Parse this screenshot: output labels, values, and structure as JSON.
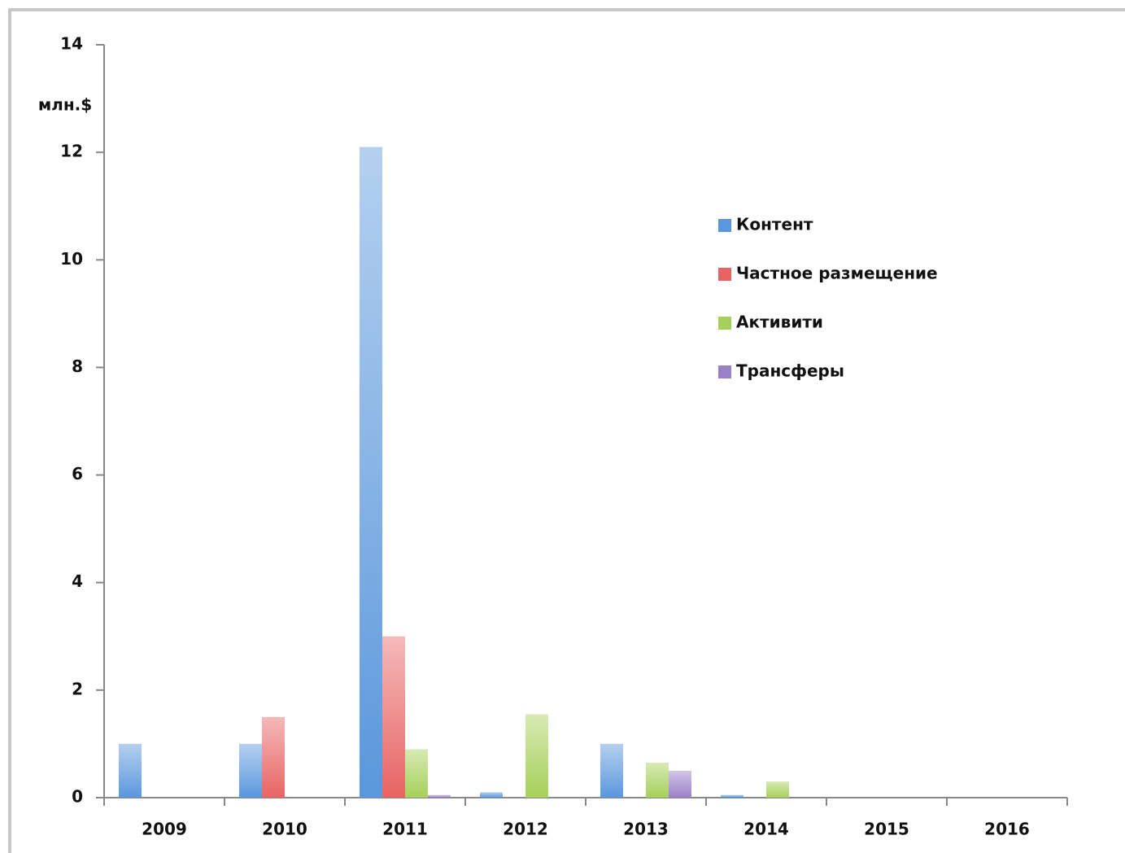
{
  "chart_data": {
    "type": "bar",
    "y_label": "млн.$",
    "categories": [
      "2009",
      "2010",
      "2011",
      "2012",
      "2013",
      "2014",
      "2015",
      "2016"
    ],
    "series": [
      {
        "name": "Контент",
        "color": "#5a97dc",
        "values": [
          1.0,
          1.0,
          12.1,
          0.1,
          1.0,
          0.05,
          0,
          0
        ]
      },
      {
        "name": "Частное размещение",
        "color": "#e86464",
        "values": [
          0,
          1.5,
          3.0,
          0,
          0,
          0,
          0,
          0
        ]
      },
      {
        "name": "Активити",
        "color": "#a6d05a",
        "values": [
          0,
          0,
          0.9,
          1.55,
          0.65,
          0.3,
          0,
          0
        ]
      },
      {
        "name": "Трансферы",
        "color": "#9a80c8",
        "values": [
          0,
          0,
          0.05,
          0,
          0.5,
          0,
          0,
          0
        ]
      }
    ],
    "ylim": [
      0,
      14
    ],
    "yticks": [
      0,
      2,
      4,
      6,
      8,
      10,
      12,
      14
    ],
    "grid": false,
    "legend": "right"
  }
}
